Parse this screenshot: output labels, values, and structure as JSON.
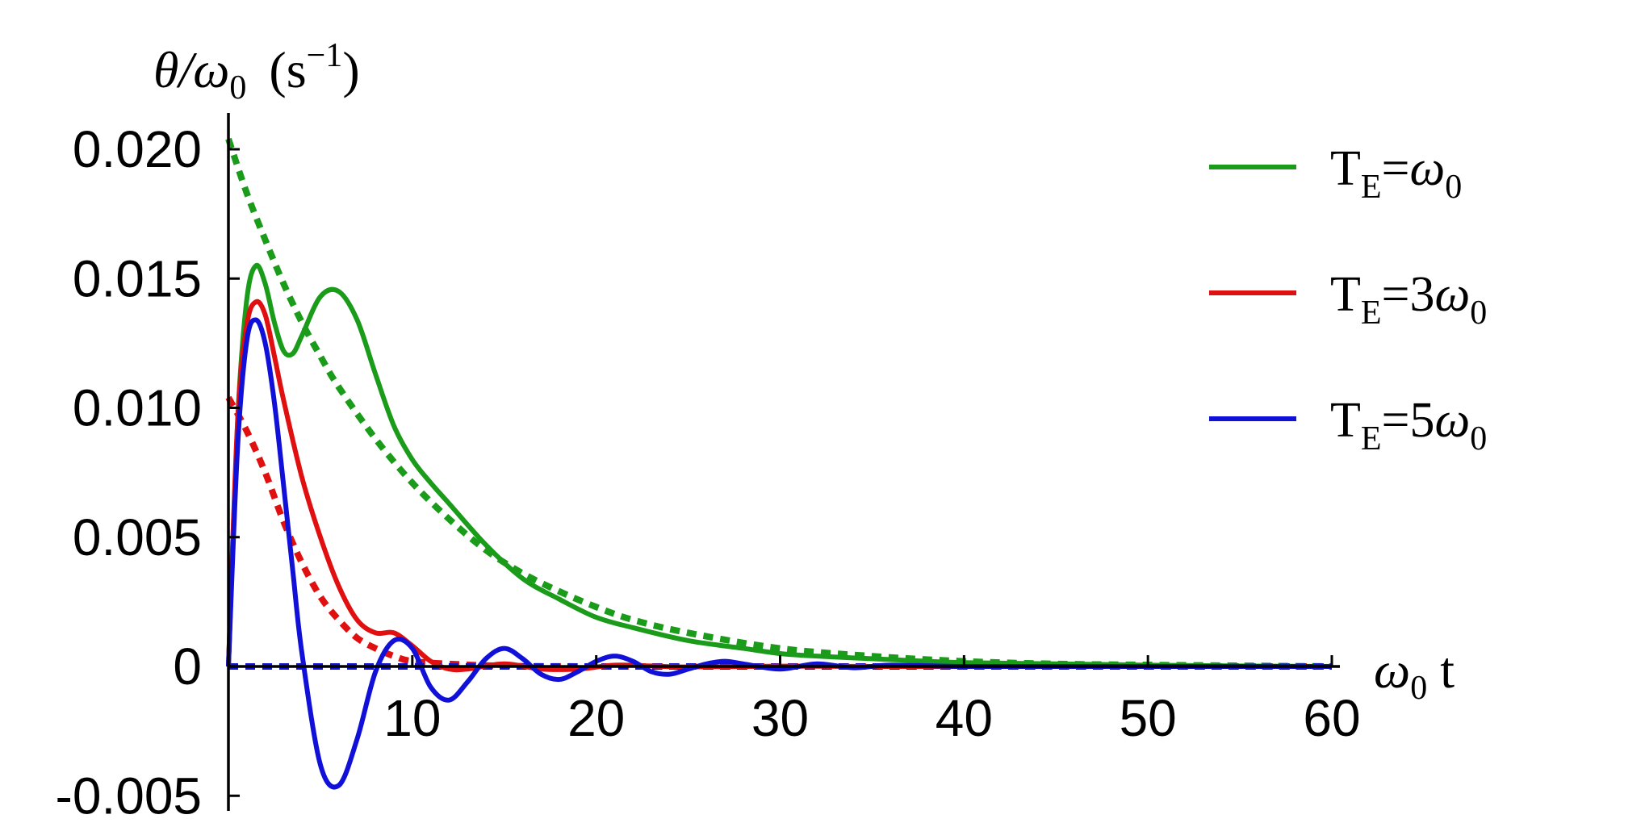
{
  "chart_data": {
    "type": "line",
    "ylabel": "θ/ω0 (s−1)",
    "ylabel_parts": {
      "main": "θ/ω",
      "sub": "0",
      "unit_open": "(s",
      "sup": "−1",
      "unit_close": ")"
    },
    "xlabel": "ω0 t",
    "xlabel_parts": {
      "main": "ω",
      "sub": "0",
      "tail": " t"
    },
    "xlim": [
      0,
      60
    ],
    "ylim": [
      -0.005,
      0.021
    ],
    "x_ticks": [
      {
        "value": 10,
        "label": "10"
      },
      {
        "value": 20,
        "label": "20"
      },
      {
        "value": 30,
        "label": "30"
      },
      {
        "value": 40,
        "label": "40"
      },
      {
        "value": 50,
        "label": "50"
      },
      {
        "value": 60,
        "label": "60"
      }
    ],
    "y_ticks": [
      {
        "value": -0.005,
        "label": "-0.005"
      },
      {
        "value": 0,
        "label": "0"
      },
      {
        "value": 0.005,
        "label": "0.005"
      },
      {
        "value": 0.01,
        "label": "0.010"
      },
      {
        "value": 0.015,
        "label": "0.015"
      },
      {
        "value": 0.02,
        "label": "0.020"
      }
    ],
    "grid": false,
    "legend_position": "top-right",
    "series": [
      {
        "name": "TE=ω0",
        "legend": {
          "main": "T",
          "sub": "E",
          "eq": "=",
          "coef": "",
          "sym": "ω",
          "sym_sub": "0"
        },
        "color": "#1a9c1a",
        "style": "solid",
        "x": [
          0,
          0.5,
          1,
          1.5,
          2,
          2.5,
          3,
          3.5,
          4,
          5,
          6,
          7,
          8,
          9,
          10,
          11,
          12,
          14,
          16,
          18,
          20,
          22,
          25,
          28,
          30,
          32,
          35,
          38,
          40,
          45,
          50,
          55,
          60
        ],
        "y": [
          0.0,
          0.0095,
          0.0142,
          0.0155,
          0.0148,
          0.0133,
          0.0122,
          0.0121,
          0.0128,
          0.0143,
          0.0145,
          0.0134,
          0.0113,
          0.0093,
          0.008,
          0.0071,
          0.0063,
          0.0047,
          0.0034,
          0.0026,
          0.0019,
          0.0015,
          0.001,
          0.0007,
          0.0005,
          0.0004,
          0.0003,
          0.0002,
          0.00015,
          0.0001,
          5e-05,
          2e-05,
          0.0
        ]
      },
      {
        "name": "TE=ω0 (dotted)",
        "color": "#1a9c1a",
        "style": "dotted",
        "x": [
          0,
          1,
          2,
          3,
          4,
          5,
          6,
          8,
          10,
          12,
          14,
          16,
          18,
          20,
          22,
          25,
          30,
          35,
          40,
          45,
          50,
          55,
          60
        ],
        "y": [
          0.0204,
          0.0183,
          0.0165,
          0.0148,
          0.0133,
          0.012,
          0.0108,
          0.0088,
          0.0071,
          0.0057,
          0.0045,
          0.0036,
          0.0029,
          0.0023,
          0.0018,
          0.0013,
          0.0007,
          0.0004,
          0.0002,
          0.0001,
          6e-05,
          3e-05,
          0.0
        ]
      },
      {
        "name": "TE=3ω0",
        "legend": {
          "main": "T",
          "sub": "E",
          "eq": "=",
          "coef": "3",
          "sym": "ω",
          "sym_sub": "0"
        },
        "color": "#e01010",
        "style": "solid",
        "x": [
          0,
          0.5,
          1,
          1.5,
          2,
          2.5,
          3,
          4,
          5,
          6,
          7,
          8,
          9,
          10,
          11,
          12,
          13,
          15,
          17,
          19,
          21,
          23,
          25,
          30,
          35,
          40,
          50,
          60
        ],
        "y": [
          0.0,
          0.0095,
          0.0132,
          0.0141,
          0.0136,
          0.012,
          0.0103,
          0.0073,
          0.005,
          0.0031,
          0.0018,
          0.0013,
          0.0013,
          0.0008,
          0.0002,
          -0.0001,
          -0.0001,
          0.0001,
          -0.0001,
          -0.0001,
          5e-05,
          2e-05,
          -2e-05,
          1e-05,
          0.0,
          0.0,
          0.0,
          0.0
        ]
      },
      {
        "name": "TE=3ω0 (dotted)",
        "color": "#e01010",
        "style": "dotted",
        "x": [
          0,
          1,
          2,
          3,
          4,
          5,
          6,
          7,
          8,
          9,
          10,
          12,
          15,
          20,
          30,
          40,
          60
        ],
        "y": [
          0.0104,
          0.0091,
          0.0075,
          0.0056,
          0.004,
          0.0027,
          0.0018,
          0.0011,
          0.0007,
          0.0004,
          0.0002,
          0.0001,
          2e-05,
          0.0,
          0.0,
          0.0,
          0.0
        ]
      },
      {
        "name": "TE=5ω0",
        "legend": {
          "main": "T",
          "sub": "E",
          "eq": "=",
          "coef": "5",
          "sym": "ω",
          "sym_sub": "0"
        },
        "color": "#1010d8",
        "style": "solid",
        "x": [
          0,
          0.5,
          1,
          1.5,
          2,
          2.5,
          3,
          3.5,
          4,
          5,
          6,
          7,
          8,
          9,
          10,
          11,
          12,
          13,
          14,
          15,
          16,
          17,
          18,
          19,
          20,
          21,
          22,
          23,
          24,
          25,
          26,
          27,
          28,
          30,
          32,
          34,
          36,
          40,
          45,
          50,
          55,
          60
        ],
        "y": [
          0.0,
          0.0085,
          0.0126,
          0.0134,
          0.0125,
          0.0102,
          0.007,
          0.0037,
          0.0005,
          -0.0038,
          -0.0046,
          -0.0028,
          -0.0002,
          0.001,
          0.0007,
          -0.0008,
          -0.0013,
          -0.0006,
          0.0003,
          0.0007,
          0.0003,
          -0.0003,
          -0.0005,
          -0.0002,
          0.0002,
          0.0004,
          0.0002,
          -0.0002,
          -0.0003,
          -0.0001,
          0.0001,
          0.0002,
          0.0001,
          -0.0001,
          0.0001,
          -5e-05,
          5e-05,
          0.0,
          0.0,
          0.0,
          0.0,
          0.0
        ]
      },
      {
        "name": "TE=5ω0 (dotted)",
        "color": "#1010d8",
        "style": "dotted",
        "x": [
          0,
          60
        ],
        "y": [
          0.0,
          0.0
        ]
      }
    ]
  }
}
